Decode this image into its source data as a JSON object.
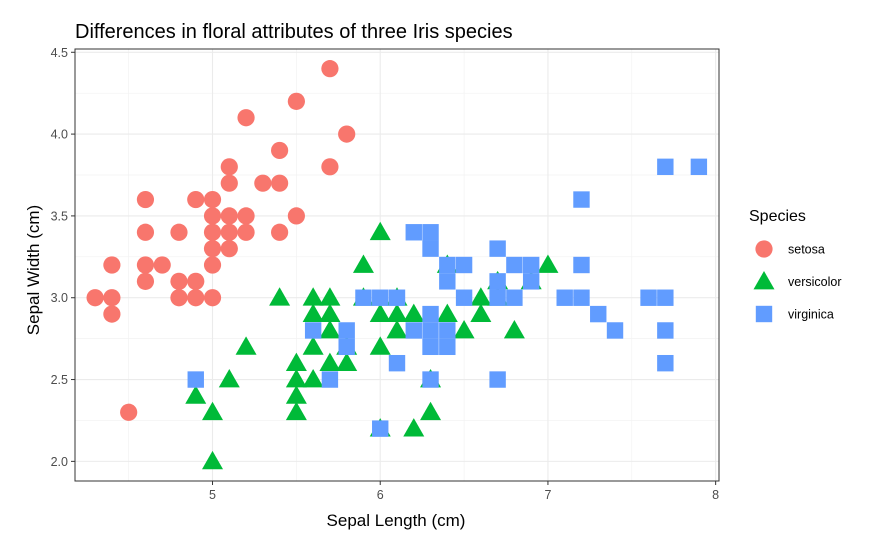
{
  "chart_data": {
    "type": "scatter",
    "title": "Differences in floral attributes of three Iris species",
    "xlabel": "Sepal Length (cm)",
    "ylabel": "Sepal Width (cm)",
    "xlim": [
      4.18,
      8.02
    ],
    "ylim": [
      1.88,
      4.52
    ],
    "x_ticks": [
      5,
      6,
      7,
      8
    ],
    "y_ticks": [
      2.0,
      2.5,
      3.0,
      3.5,
      4.0,
      4.5
    ],
    "x_tick_labels": [
      "5",
      "6",
      "7",
      "8"
    ],
    "y_tick_labels": [
      "2.0",
      "2.5",
      "3.0",
      "3.5",
      "4.0",
      "4.5"
    ],
    "grid": true,
    "legend_position": "right",
    "legend": {
      "title": "Species"
    },
    "series": [
      {
        "name": "setosa",
        "color": "#F8766D",
        "shape": "circle",
        "points": [
          [
            5.7,
            4.4
          ],
          [
            5.5,
            4.2
          ],
          [
            5.2,
            4.1
          ],
          [
            5.8,
            4.0
          ],
          [
            5.4,
            3.9
          ],
          [
            5.7,
            3.8
          ],
          [
            5.1,
            3.8
          ],
          [
            5.1,
            3.7
          ],
          [
            5.3,
            3.7
          ],
          [
            5.4,
            3.7
          ],
          [
            4.6,
            3.6
          ],
          [
            5.0,
            3.6
          ],
          [
            4.9,
            3.6
          ],
          [
            5.0,
            3.5
          ],
          [
            5.1,
            3.5
          ],
          [
            5.2,
            3.5
          ],
          [
            5.5,
            3.5
          ],
          [
            4.6,
            3.4
          ],
          [
            5.0,
            3.4
          ],
          [
            5.1,
            3.4
          ],
          [
            5.2,
            3.4
          ],
          [
            5.4,
            3.4
          ],
          [
            4.8,
            3.4
          ],
          [
            5.0,
            3.3
          ],
          [
            5.1,
            3.3
          ],
          [
            4.4,
            3.2
          ],
          [
            4.6,
            3.2
          ],
          [
            4.7,
            3.2
          ],
          [
            5.0,
            3.2
          ],
          [
            4.6,
            3.1
          ],
          [
            4.8,
            3.1
          ],
          [
            4.9,
            3.1
          ],
          [
            4.3,
            3.0
          ],
          [
            4.4,
            3.0
          ],
          [
            4.8,
            3.0
          ],
          [
            4.9,
            3.0
          ],
          [
            5.0,
            3.0
          ],
          [
            4.4,
            2.9
          ],
          [
            4.5,
            2.3
          ]
        ]
      },
      {
        "name": "versicolor",
        "color": "#00BA38",
        "shape": "triangle",
        "points": [
          [
            6.0,
            3.4
          ],
          [
            7.0,
            3.2
          ],
          [
            5.9,
            3.2
          ],
          [
            6.4,
            3.2
          ],
          [
            6.7,
            3.1
          ],
          [
            6.9,
            3.1
          ],
          [
            6.7,
            3.0
          ],
          [
            5.4,
            3.0
          ],
          [
            5.6,
            3.0
          ],
          [
            5.7,
            3.0
          ],
          [
            5.9,
            3.0
          ],
          [
            6.1,
            3.0
          ],
          [
            6.6,
            3.0
          ],
          [
            6.0,
            2.9
          ],
          [
            5.6,
            2.9
          ],
          [
            6.1,
            2.9
          ],
          [
            6.2,
            2.9
          ],
          [
            6.4,
            2.9
          ],
          [
            6.6,
            2.9
          ],
          [
            5.7,
            2.9
          ],
          [
            5.7,
            2.8
          ],
          [
            6.1,
            2.8
          ],
          [
            6.5,
            2.8
          ],
          [
            6.8,
            2.8
          ],
          [
            5.8,
            2.7
          ],
          [
            5.6,
            2.7
          ],
          [
            6.0,
            2.7
          ],
          [
            5.2,
            2.7
          ],
          [
            5.5,
            2.6
          ],
          [
            5.8,
            2.6
          ],
          [
            5.7,
            2.6
          ],
          [
            5.5,
            2.5
          ],
          [
            5.6,
            2.5
          ],
          [
            5.1,
            2.5
          ],
          [
            6.3,
            2.5
          ],
          [
            4.9,
            2.4
          ],
          [
            5.5,
            2.4
          ],
          [
            5.0,
            2.3
          ],
          [
            5.5,
            2.3
          ],
          [
            6.3,
            2.3
          ],
          [
            6.0,
            2.2
          ],
          [
            6.2,
            2.2
          ],
          [
            5.0,
            2.0
          ]
        ]
      },
      {
        "name": "virginica",
        "color": "#619CFF",
        "shape": "square",
        "points": [
          [
            7.7,
            3.8
          ],
          [
            7.9,
            3.8
          ],
          [
            7.2,
            3.6
          ],
          [
            6.2,
            3.4
          ],
          [
            6.3,
            3.4
          ],
          [
            6.3,
            3.3
          ],
          [
            6.7,
            3.3
          ],
          [
            6.4,
            3.2
          ],
          [
            6.5,
            3.2
          ],
          [
            6.8,
            3.2
          ],
          [
            6.9,
            3.2
          ],
          [
            7.2,
            3.2
          ],
          [
            6.4,
            3.1
          ],
          [
            6.7,
            3.1
          ],
          [
            6.9,
            3.1
          ],
          [
            5.9,
            3.0
          ],
          [
            6.0,
            3.0
          ],
          [
            6.1,
            3.0
          ],
          [
            6.5,
            3.0
          ],
          [
            6.7,
            3.0
          ],
          [
            6.8,
            3.0
          ],
          [
            7.1,
            3.0
          ],
          [
            7.2,
            3.0
          ],
          [
            7.6,
            3.0
          ],
          [
            7.7,
            3.0
          ],
          [
            6.3,
            2.9
          ],
          [
            7.3,
            2.9
          ],
          [
            6.2,
            2.8
          ],
          [
            6.3,
            2.8
          ],
          [
            6.4,
            2.8
          ],
          [
            5.6,
            2.8
          ],
          [
            5.8,
            2.8
          ],
          [
            7.4,
            2.8
          ],
          [
            7.7,
            2.8
          ],
          [
            5.8,
            2.7
          ],
          [
            6.3,
            2.7
          ],
          [
            6.4,
            2.7
          ],
          [
            6.1,
            2.6
          ],
          [
            7.7,
            2.6
          ],
          [
            4.9,
            2.5
          ],
          [
            5.7,
            2.5
          ],
          [
            6.3,
            2.5
          ],
          [
            6.7,
            2.5
          ],
          [
            6.0,
            2.2
          ]
        ]
      }
    ]
  }
}
